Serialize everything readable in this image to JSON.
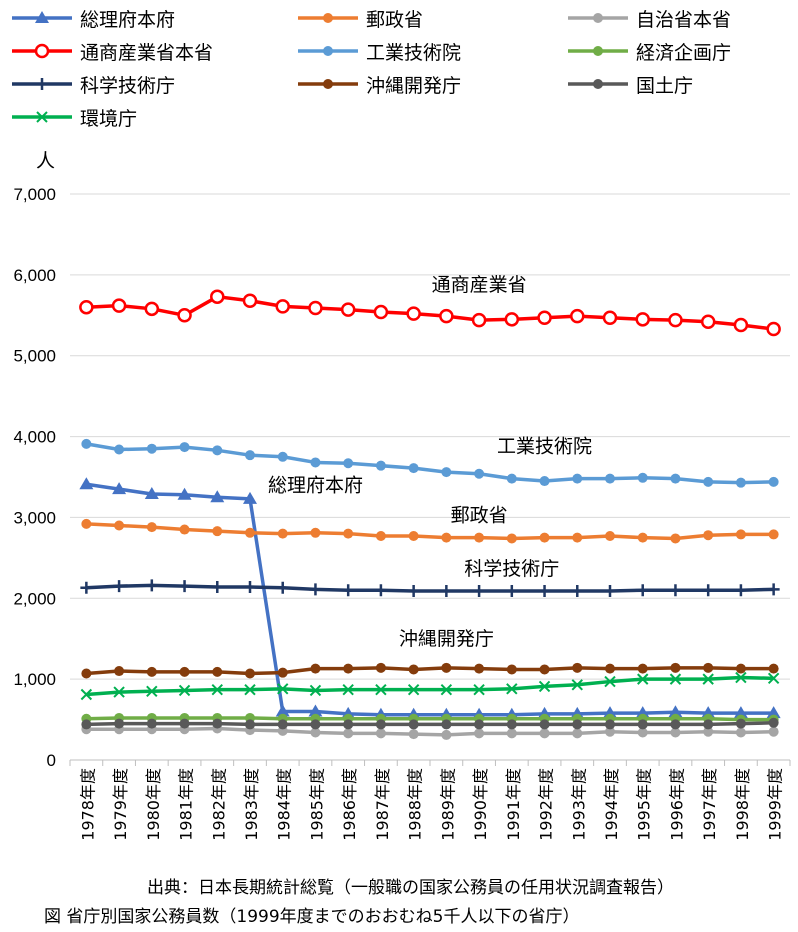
{
  "chart_data": {
    "type": "line",
    "ylabel": "人",
    "ylim": [
      0,
      7000
    ],
    "yticks": [
      0,
      1000,
      2000,
      3000,
      4000,
      5000,
      6000,
      7000
    ],
    "ytick_labels": [
      "0",
      "1,000",
      "2,000",
      "3,000",
      "4,000",
      "5,000",
      "6,000",
      "7,000"
    ],
    "grid": "horizontal",
    "legend_position": "top",
    "categories": [
      "1978年度",
      "1979年度",
      "1980年度",
      "1981年度",
      "1982年度",
      "1983年度",
      "1984年度",
      "1985年度",
      "1986年度",
      "1987年度",
      "1988年度",
      "1989年度",
      "1990年度",
      "1991年度",
      "1992年度",
      "1993年度",
      "1994年度",
      "1995年度",
      "1996年度",
      "1997年度",
      "1998年度",
      "1999年度"
    ],
    "series": [
      {
        "name": "総理府本府",
        "color": "#4472C4",
        "marker": "triangle",
        "values": [
          3410,
          3350,
          3290,
          3280,
          3250,
          3230,
          600,
          600,
          570,
          560,
          560,
          560,
          560,
          560,
          570,
          570,
          580,
          580,
          590,
          580,
          580,
          580
        ]
      },
      {
        "name": "郵政省",
        "color": "#ED7D31",
        "marker": "circle",
        "values": [
          2920,
          2900,
          2880,
          2850,
          2830,
          2810,
          2800,
          2810,
          2800,
          2770,
          2770,
          2750,
          2750,
          2740,
          2750,
          2750,
          2770,
          2750,
          2740,
          2780,
          2790,
          2790
        ]
      },
      {
        "name": "自治省本省",
        "color": "#A5A5A5",
        "marker": "circle",
        "values": [
          380,
          380,
          380,
          380,
          390,
          370,
          360,
          340,
          330,
          330,
          320,
          310,
          330,
          330,
          330,
          330,
          350,
          340,
          340,
          350,
          340,
          350
        ]
      },
      {
        "name": "通商産業省本省",
        "color": "#FF0000",
        "marker": "open-circle",
        "values": [
          5600,
          5620,
          5580,
          5500,
          5730,
          5680,
          5610,
          5590,
          5570,
          5540,
          5520,
          5490,
          5440,
          5450,
          5470,
          5490,
          5470,
          5450,
          5440,
          5420,
          5380,
          5330
        ]
      },
      {
        "name": "工業技術院",
        "color": "#5B9BD5",
        "marker": "circle",
        "values": [
          3910,
          3840,
          3850,
          3870,
          3830,
          3770,
          3750,
          3680,
          3670,
          3640,
          3610,
          3560,
          3540,
          3480,
          3450,
          3480,
          3480,
          3490,
          3480,
          3440,
          3430,
          3440
        ]
      },
      {
        "name": "経済企画庁",
        "color": "#70AD47",
        "marker": "circle",
        "values": [
          510,
          520,
          520,
          520,
          520,
          520,
          510,
          510,
          510,
          510,
          510,
          510,
          510,
          510,
          510,
          510,
          510,
          510,
          510,
          510,
          500,
          500
        ]
      },
      {
        "name": "科学技術庁",
        "color": "#203864",
        "marker": "plus",
        "values": [
          2130,
          2150,
          2160,
          2150,
          2140,
          2140,
          2130,
          2110,
          2100,
          2100,
          2090,
          2090,
          2090,
          2090,
          2090,
          2090,
          2090,
          2100,
          2100,
          2100,
          2100,
          2110
        ]
      },
      {
        "name": "沖縄開発庁",
        "color": "#843C0C",
        "marker": "circle",
        "values": [
          1070,
          1100,
          1090,
          1090,
          1090,
          1070,
          1080,
          1130,
          1130,
          1140,
          1120,
          1140,
          1130,
          1120,
          1120,
          1140,
          1130,
          1130,
          1140,
          1140,
          1130,
          1130
        ]
      },
      {
        "name": "国土庁",
        "color": "#595959",
        "marker": "circle",
        "values": [
          440,
          450,
          450,
          450,
          450,
          440,
          440,
          440,
          440,
          440,
          440,
          440,
          440,
          440,
          440,
          440,
          440,
          440,
          440,
          440,
          450,
          460
        ]
      },
      {
        "name": "環境庁",
        "color": "#00B050",
        "marker": "x",
        "values": [
          810,
          840,
          850,
          860,
          870,
          870,
          880,
          860,
          870,
          870,
          870,
          870,
          870,
          880,
          910,
          930,
          970,
          1000,
          1000,
          1000,
          1020,
          1010
        ]
      }
    ],
    "annotations": [
      {
        "text": "通商産業省",
        "at_category": "1990年度",
        "y": 5800
      },
      {
        "text": "工業技術院",
        "at_category": "1992年度",
        "y": 3800
      },
      {
        "text": "総理府本府",
        "at_category": "1985年度",
        "y": 3320
      },
      {
        "text": "郵政省",
        "at_category": "1990年度",
        "y": 2950
      },
      {
        "text": "科学技術庁",
        "at_category": "1991年度",
        "y": 2290
      },
      {
        "text": "沖縄開発庁",
        "at_category": "1989年度",
        "y": 1420
      }
    ]
  },
  "captions": {
    "source": "出典：日本長期統計総覧（一般職の国家公務員の任用状況調査報告）",
    "figure": "図 省庁別国家公務員数（1999年度までのおおむね5千人以下の省庁）"
  }
}
